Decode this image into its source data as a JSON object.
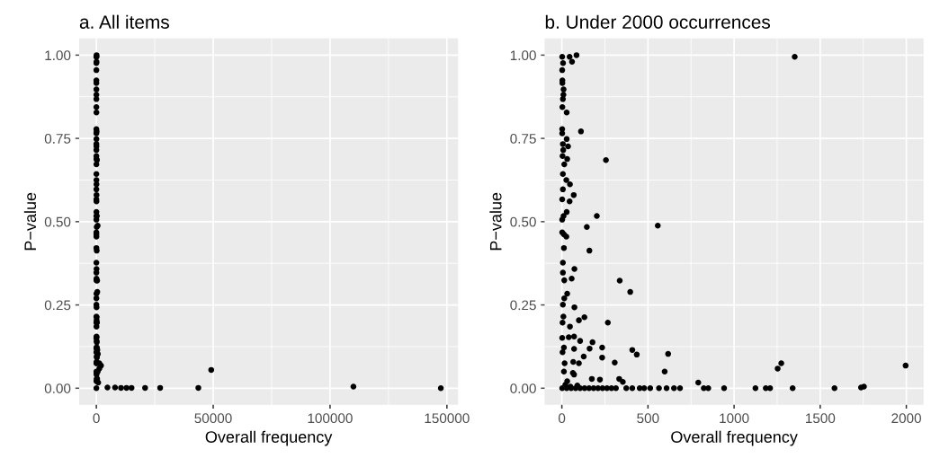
{
  "chart_data": [
    {
      "type": "scatter",
      "title": "a. All items",
      "xlabel": "Overall frequency",
      "ylabel": "P−value",
      "marker": "circle",
      "grid": true,
      "xlim": [
        -7370,
        154770
      ],
      "xticks": [
        0,
        50000,
        100000,
        150000
      ],
      "ylim": [
        -0.05,
        1.05
      ],
      "yticks": [
        {
          "value": 0,
          "label": "0.00"
        },
        {
          "value": 0.25,
          "label": "0.25"
        },
        {
          "value": 0.5,
          "label": "0.50"
        },
        {
          "value": 0.75,
          "label": "0.75"
        },
        {
          "value": 1,
          "label": "1.00"
        }
      ],
      "series": [
        {
          "color": "#000000",
          "x": [
            2,
            45,
            85,
            59,
            7,
            2,
            3,
            3,
            10,
            9,
            6,
            3,
            28,
            2,
            2,
            111,
            28,
            6,
            36,
            8,
            4,
            31,
            256,
            14,
            6,
            26,
            47,
            6,
            69,
            2,
            45,
            28,
            10,
            203,
            2,
            145,
            557,
            2,
            12,
            26,
            12,
            160,
            6,
            73,
            6,
            57,
            14,
            336,
            397,
            31,
            14,
            6,
            73,
            9,
            131,
            4,
            267,
            47,
            99,
            2,
            40,
            71,
            106,
            178,
            234,
            409,
            435,
            617,
            12,
            4,
            71,
            127,
            234,
            16,
            66,
            99,
            597,
            1274,
            1253,
            1996,
            64,
            12,
            174,
            221,
            333,
            792,
            31,
            71,
            2,
            4750,
            8000,
            10550,
            12900,
            15050,
            20850,
            27300,
            43640,
            49150,
            110000,
            147400
          ],
          "values": [
            0.995,
            0.995,
            1.0,
            0.98,
            0.976,
            0.955,
            0.924,
            0.916,
            0.897,
            0.881,
            0.868,
            0.844,
            0.828,
            0.778,
            0.765,
            0.771,
            0.748,
            0.733,
            0.726,
            0.715,
            0.697,
            0.688,
            0.685,
            0.672,
            0.643,
            0.625,
            0.612,
            0.597,
            0.58,
            0.567,
            0.561,
            0.529,
            0.517,
            0.517,
            0.506,
            0.484,
            0.488,
            0.468,
            0.462,
            0.455,
            0.421,
            0.413,
            0.377,
            0.358,
            0.347,
            0.329,
            0.324,
            0.323,
            0.289,
            0.284,
            0.27,
            0.251,
            0.243,
            0.215,
            0.213,
            0.197,
            0.197,
            0.185,
            0.204,
            0.151,
            0.153,
            0.155,
            0.142,
            0.138,
            0.122,
            0.115,
            0.101,
            0.103,
            0.122,
            0.108,
            0.118,
            0.095,
            0.092,
            0.075,
            0.079,
            0.075,
            0.05,
            0.075,
            0.059,
            0.068,
            0.046,
            0.05,
            0.028,
            0.026,
            0.028,
            0.017,
            0.021,
            0.041,
            0,
            0.002,
            0.002,
            0.001,
            0.001,
            0.001,
            0.001,
            0.001,
            0.001,
            0.055,
            0.005,
            0
          ]
        }
      ]
    },
    {
      "type": "scatter",
      "title": "b. Under 2000 occurrences",
      "xlabel": "Overall frequency",
      "ylabel": "P−value",
      "marker": "circle",
      "grid": true,
      "xlim": [
        -100,
        2100
      ],
      "xticks": [
        0,
        500,
        1000,
        1500,
        2000
      ],
      "ylim": [
        -0.05,
        1.05
      ],
      "yticks": [
        {
          "value": 0,
          "label": "0.00"
        },
        {
          "value": 0.25,
          "label": "0.25"
        },
        {
          "value": 0.5,
          "label": "0.50"
        },
        {
          "value": 0.75,
          "label": "0.75"
        },
        {
          "value": 1,
          "label": "1.00"
        }
      ],
      "series": [
        {
          "color": "#000000",
          "x": [
            2,
            45,
            85,
            59,
            7,
            2,
            3,
            3,
            10,
            9,
            6,
            3,
            28,
            2,
            2,
            111,
            28,
            6,
            36,
            8,
            4,
            31,
            256,
            14,
            6,
            26,
            47,
            6,
            69,
            2,
            45,
            28,
            10,
            203,
            2,
            145,
            557,
            2,
            12,
            26,
            12,
            160,
            6,
            73,
            6,
            57,
            14,
            336,
            397,
            31,
            14,
            6,
            73,
            9,
            131,
            4,
            267,
            47,
            99,
            2,
            40,
            71,
            106,
            178,
            161,
            234,
            409,
            435,
            617,
            12,
            4,
            71,
            127,
            234,
            16,
            66,
            99,
            307,
            597,
            1274,
            1253,
            1996,
            64,
            12,
            174,
            221,
            333,
            354,
            792,
            31,
            71,
            2,
            28,
            54,
            80,
            106,
            132,
            158,
            184,
            210,
            236,
            262,
            288,
            314,
            374,
            409,
            452,
            478,
            513,
            564,
            608,
            651,
            686,
            824,
            850,
            942,
            1124,
            1184,
            1209,
            1340,
            1583,
            1737,
            1754,
            1352,
            20,
            50,
            90
          ],
          "values": [
            0.995,
            0.995,
            1.0,
            0.98,
            0.976,
            0.955,
            0.924,
            0.916,
            0.897,
            0.881,
            0.868,
            0.844,
            0.828,
            0.778,
            0.765,
            0.771,
            0.748,
            0.733,
            0.726,
            0.715,
            0.697,
            0.688,
            0.685,
            0.672,
            0.643,
            0.625,
            0.612,
            0.597,
            0.58,
            0.567,
            0.561,
            0.529,
            0.517,
            0.517,
            0.506,
            0.484,
            0.488,
            0.468,
            0.462,
            0.455,
            0.421,
            0.413,
            0.377,
            0.358,
            0.347,
            0.329,
            0.324,
            0.323,
            0.289,
            0.284,
            0.27,
            0.251,
            0.243,
            0.215,
            0.213,
            0.197,
            0.197,
            0.185,
            0.204,
            0.151,
            0.153,
            0.155,
            0.142,
            0.138,
            0.119,
            0.122,
            0.115,
            0.101,
            0.103,
            0.122,
            0.108,
            0.118,
            0.095,
            0.092,
            0.075,
            0.079,
            0.075,
            0.077,
            0.05,
            0.075,
            0.059,
            0.068,
            0.046,
            0.05,
            0.028,
            0.026,
            0.028,
            0.019,
            0.017,
            0.021,
            0.041,
            0,
            0,
            0,
            0,
            0,
            0,
            0,
            0,
            0,
            0,
            0,
            0,
            0,
            0,
            0,
            0,
            0,
            0,
            0,
            0,
            0,
            0,
            0,
            0,
            0,
            0,
            0,
            0,
            0,
            0,
            0.002,
            0.005,
            0.995,
            0.01,
            0.005,
            0.008
          ]
        }
      ]
    }
  ]
}
